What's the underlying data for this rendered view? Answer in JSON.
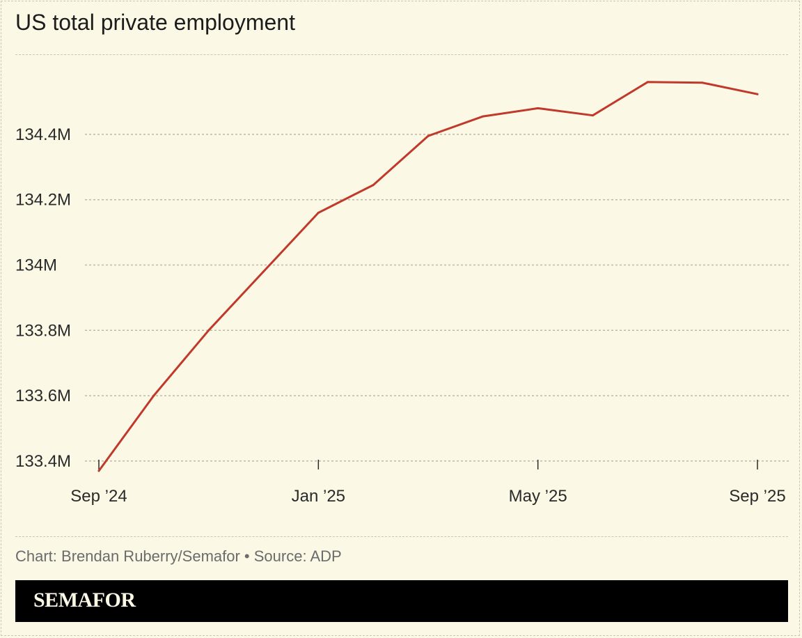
{
  "chart_data": {
    "type": "line",
    "title": "US total private employment",
    "xlabel": "",
    "ylabel": "",
    "x": [
      "2024-09",
      "2024-10",
      "2024-11",
      "2024-12",
      "2025-01",
      "2025-02",
      "2025-03",
      "2025-04",
      "2025-05",
      "2025-06",
      "2025-07",
      "2025-08",
      "2025-09"
    ],
    "x_tick_labels": [
      {
        "x": "2024-09",
        "label": "Sep ’24"
      },
      {
        "x": "2025-01",
        "label": "Jan ’25"
      },
      {
        "x": "2025-05",
        "label": "May ’25"
      },
      {
        "x": "2025-09",
        "label": "Sep ’25"
      }
    ],
    "y_tick_labels": [
      {
        "y": 133.4,
        "label": "133.4M"
      },
      {
        "y": 133.6,
        "label": "133.6M"
      },
      {
        "y": 133.8,
        "label": "133.8M"
      },
      {
        "y": 134.0,
        "label": "134M"
      },
      {
        "y": 134.2,
        "label": "134.2M"
      },
      {
        "y": 134.4,
        "label": "134.4M"
      }
    ],
    "ylim": [
      133.37,
      134.63
    ],
    "unit": "M",
    "series": [
      {
        "values": [
          133.37,
          133.6,
          133.8,
          133.98,
          134.16,
          134.245,
          134.395,
          134.455,
          134.48,
          134.458,
          134.56,
          134.558,
          134.523
        ],
        "color": "#c0392b"
      }
    ],
    "grid": true,
    "legend": "none"
  },
  "credit": "Chart: Brendan Ruberry/Semafor • Source: ADP",
  "brand": "SEMAFOR"
}
